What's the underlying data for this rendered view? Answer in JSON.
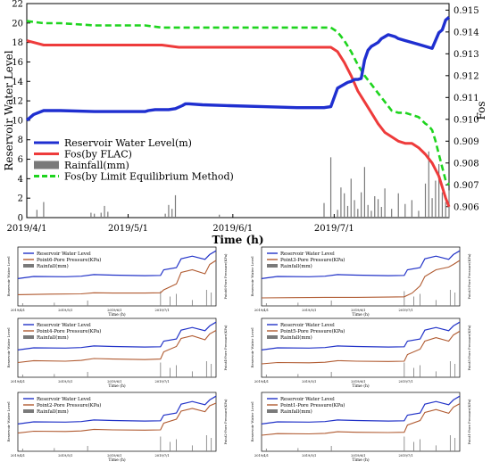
{
  "colors": {
    "water": "#1f2fd0",
    "fos_flac": "#ee3b3b",
    "fos_lem": "#1ed41e",
    "rainfall": "#7a7a7a",
    "pore": "#b05a30",
    "water_small": "#2233c8"
  },
  "chart_data": [
    {
      "type": "line",
      "xlabel": "Time (h)",
      "ylabel": "Reservoir Water Level",
      "y2label": "Fos",
      "xticks": [
        "2019/4/1",
        "2019/5/1",
        "2019/6/1",
        "2019/7/1"
      ],
      "yticks": [
        "0",
        "2",
        "4",
        "6",
        "8",
        "10",
        "12",
        "14",
        "16",
        "18",
        "20",
        "22"
      ],
      "y2ticks": [
        "0.906",
        "0.907",
        "0.908",
        "0.909",
        "0.910",
        "0.911",
        "0.912",
        "0.913",
        "0.914",
        "0.915"
      ],
      "xlim": [
        0,
        125
      ],
      "ylim": [
        0,
        22
      ],
      "y2lim": [
        0.9055,
        0.9153
      ],
      "legend_position": "center-left",
      "series": [
        {
          "name": "Reservoir Water Level(m)",
          "axis": "left",
          "x": [
            0,
            2,
            5,
            10,
            20,
            30,
            35,
            36,
            38,
            40,
            42,
            44,
            46,
            47,
            48,
            52,
            60,
            70,
            80,
            85,
            88,
            90,
            92,
            94,
            95,
            96,
            97,
            98,
            99,
            100,
            101,
            102,
            103,
            104,
            105,
            106,
            107,
            108,
            109,
            110,
            112,
            114,
            116,
            118,
            120,
            122,
            123,
            124,
            125
          ],
          "values": [
            10.0,
            10.6,
            11.0,
            11.0,
            10.9,
            10.9,
            10.9,
            11.0,
            11.1,
            11.1,
            11.1,
            11.2,
            11.5,
            11.7,
            11.7,
            11.6,
            11.5,
            11.4,
            11.3,
            11.3,
            11.3,
            11.4,
            13.3,
            13.7,
            13.9,
            14.0,
            14.2,
            14.2,
            14.3,
            16.2,
            17.2,
            17.6,
            17.8,
            18.0,
            18.4,
            18.6,
            18.8,
            18.7,
            18.6,
            18.4,
            18.2,
            18.0,
            17.8,
            17.6,
            17.4,
            19.0,
            19.3,
            20.3,
            20.6
          ]
        },
        {
          "name": "Fos(by FLAC)",
          "axis": "right",
          "x": [
            0,
            5,
            10,
            20,
            30,
            35,
            40,
            45,
            50,
            60,
            70,
            80,
            90,
            92,
            94,
            96,
            98,
            100,
            102,
            104,
            106,
            108,
            110,
            112,
            114,
            116,
            118,
            120,
            122,
            123,
            124,
            125
          ],
          "values": [
            0.9136,
            0.9134,
            0.9134,
            0.9134,
            0.9134,
            0.9134,
            0.9134,
            0.9133,
            0.9133,
            0.9133,
            0.9133,
            0.9133,
            0.9133,
            0.9131,
            0.9126,
            0.912,
            0.9113,
            0.9108,
            0.9103,
            0.9098,
            0.9094,
            0.9092,
            0.909,
            0.9089,
            0.9089,
            0.9087,
            0.9084,
            0.908,
            0.9074,
            0.9069,
            0.9064,
            0.906
          ]
        },
        {
          "name": "Fos(by Limit Equilibrium Method)",
          "axis": "right",
          "x": [
            0,
            5,
            10,
            20,
            30,
            35,
            40,
            45,
            50,
            60,
            70,
            80,
            90,
            92,
            94,
            96,
            98,
            100,
            102,
            104,
            106,
            108,
            110,
            112,
            114,
            116,
            118,
            119,
            120,
            121,
            122,
            123,
            124,
            125
          ],
          "values": [
            0.9145,
            0.9144,
            0.9144,
            0.9143,
            0.9143,
            0.9143,
            0.9142,
            0.9142,
            0.9142,
            0.9142,
            0.9142,
            0.9142,
            0.9142,
            0.914,
            0.9136,
            0.9131,
            0.9125,
            0.912,
            0.9116,
            0.9112,
            0.9108,
            0.9104,
            0.9103,
            0.9103,
            0.9102,
            0.9101,
            0.9098,
            0.9097,
            0.9095,
            0.909,
            0.9084,
            0.9078,
            0.9072,
            0.907
          ]
        },
        {
          "name": "Rainfall(mm)",
          "axis": "left",
          "type": "bar",
          "x": [
            3,
            5,
            19,
            20,
            22,
            23,
            24,
            41,
            42,
            43,
            44,
            57,
            88,
            90,
            92,
            93,
            94,
            95,
            96,
            97,
            98,
            99,
            100,
            101,
            102,
            103,
            104,
            105,
            106,
            108,
            110,
            112,
            114,
            116,
            118,
            119,
            120,
            121,
            122,
            123,
            124,
            125
          ],
          "values": [
            0.8,
            1.6,
            0.5,
            0.4,
            0.5,
            1.2,
            0.6,
            0.4,
            1.3,
            0.9,
            2.3,
            0.3,
            1.5,
            6.2,
            0.8,
            3.1,
            2.5,
            1.2,
            4.0,
            1.8,
            0.9,
            2.6,
            5.2,
            1.3,
            0.7,
            2.2,
            1.9,
            1.1,
            3.0,
            0.9,
            2.5,
            1.4,
            1.8,
            0.7,
            3.5,
            6.8,
            2.0,
            3.8,
            5.5,
            2.6,
            1.6,
            2.8
          ]
        }
      ]
    },
    {
      "type": "line",
      "xticks": [
        "2019/4/1",
        "2019/5/1",
        "2019/6/1",
        "2019/7/1"
      ],
      "xlabel": "Time (h)",
      "ylabel": "Reservoir Water Level",
      "y2label": "Point6-Pore Pressure(KPa)",
      "series": [
        {
          "name": "Reservoir Water Level",
          "x": [
            0,
            10,
            30,
            40,
            48,
            60,
            80,
            90,
            92,
            100,
            103,
            110,
            118,
            121,
            125
          ],
          "values": [
            10.2,
            11.0,
            10.9,
            11.1,
            11.7,
            11.5,
            11.3,
            11.4,
            13.5,
            14.3,
            17.6,
            18.6,
            17.4,
            19.2,
            20.6
          ]
        },
        {
          "name": "Point6-Pore Pressure(KPa)",
          "x": [
            0,
            20,
            40,
            48,
            60,
            80,
            90,
            92,
            100,
            103,
            110,
            118,
            121,
            125
          ],
          "values": [
            4.2,
            4.4,
            4.5,
            4.9,
            4.8,
            4.8,
            4.9,
            6.0,
            8.2,
            12.5,
            13.5,
            12.0,
            15.5,
            17.0
          ]
        },
        {
          "name": "Rainfall(mm)",
          "type": "bar",
          "x": [
            3,
            23,
            44,
            90,
            96,
            100,
            110,
            119,
            122
          ],
          "values": [
            1,
            1.2,
            2,
            5.5,
            3.5,
            4.5,
            2.2,
            6,
            5
          ]
        }
      ]
    },
    {
      "type": "line",
      "xticks": [
        "2019/4/1",
        "2019/5/1",
        "2019/6/1",
        "2019/7/1"
      ],
      "xlabel": "Time (h)",
      "ylabel": "Reservoir Water Level",
      "y2label": "Point3-Pore Pressure(KPa)",
      "series": [
        {
          "name": "Reservoir Water Level",
          "x": [
            0,
            10,
            30,
            40,
            48,
            60,
            80,
            90,
            92,
            100,
            103,
            110,
            118,
            121,
            125
          ],
          "values": [
            10.2,
            11.0,
            10.9,
            11.1,
            11.7,
            11.5,
            11.3,
            11.4,
            13.5,
            14.3,
            17.6,
            18.6,
            17.4,
            19.2,
            20.6
          ]
        },
        {
          "name": "Point3-Pore Pressure(KPa)",
          "x": [
            0,
            20,
            40,
            60,
            80,
            90,
            95,
            100,
            103,
            110,
            118,
            121,
            125
          ],
          "values": [
            3.0,
            3.1,
            3.2,
            3.2,
            3.3,
            3.4,
            4.8,
            7.5,
            11.0,
            13.5,
            14.5,
            15.5,
            17.0
          ]
        },
        {
          "name": "Rainfall(mm)",
          "type": "bar",
          "x": [
            3,
            23,
            44,
            90,
            96,
            100,
            110,
            119,
            122
          ],
          "values": [
            1,
            1.2,
            2,
            5.5,
            3.5,
            4.5,
            2.2,
            6,
            5
          ]
        }
      ]
    },
    {
      "type": "line",
      "xticks": [
        "2019/4/1",
        "2019/5/1",
        "2019/6/1",
        "2019/7/1"
      ],
      "xlabel": "Time (h)",
      "ylabel": "Reservoir Water Level",
      "y2label": "Point4-Pore Pressure(KPa)",
      "series": [
        {
          "name": "Reservoir Water Level",
          "x": [
            0,
            10,
            30,
            40,
            48,
            60,
            80,
            90,
            92,
            100,
            103,
            110,
            118,
            121,
            125
          ],
          "values": [
            10.2,
            11.0,
            10.9,
            11.1,
            11.7,
            11.5,
            11.3,
            11.4,
            13.5,
            14.3,
            17.6,
            18.6,
            17.4,
            19.2,
            20.6
          ]
        },
        {
          "name": "Point4-Pore Pressure(KPa)",
          "x": [
            0,
            10,
            30,
            40,
            48,
            60,
            80,
            90,
            92,
            100,
            103,
            110,
            118,
            121,
            125
          ],
          "values": [
            5.5,
            6.2,
            6.0,
            6.3,
            7.0,
            6.8,
            6.6,
            6.8,
            9.5,
            11.5,
            14.5,
            15.5,
            14.0,
            16.2,
            17.5
          ]
        },
        {
          "name": "Rainfall(mm)",
          "type": "bar",
          "x": [
            3,
            23,
            44,
            90,
            96,
            100,
            110,
            119,
            122
          ],
          "values": [
            1,
            1.2,
            2,
            5.5,
            3.5,
            4.5,
            2.2,
            6,
            5
          ]
        }
      ]
    },
    {
      "type": "line",
      "xticks": [
        "2019/4/1",
        "2019/5/1",
        "2019/6/1",
        "2019/7/1"
      ],
      "xlabel": "Time (h)",
      "ylabel": "Reservoir Water Level",
      "y2label": "Point5-Pore Pressure(KPa)",
      "series": [
        {
          "name": "Reservoir Water Level",
          "x": [
            0,
            10,
            30,
            40,
            48,
            60,
            80,
            90,
            92,
            100,
            103,
            110,
            118,
            121,
            125
          ],
          "values": [
            10.2,
            11.0,
            10.9,
            11.1,
            11.7,
            11.5,
            11.3,
            11.4,
            13.5,
            14.3,
            17.6,
            18.6,
            17.4,
            19.2,
            20.6
          ]
        },
        {
          "name": "Point5-Pore Pressure(KPa)",
          "x": [
            0,
            10,
            30,
            40,
            48,
            60,
            80,
            90,
            92,
            100,
            103,
            110,
            118,
            121,
            125
          ],
          "values": [
            5.0,
            5.5,
            5.4,
            5.6,
            6.2,
            6.0,
            5.9,
            6.0,
            8.5,
            10.5,
            13.5,
            14.8,
            13.5,
            15.8,
            17.2
          ]
        },
        {
          "name": "Rainfall(mm)",
          "type": "bar",
          "x": [
            3,
            23,
            44,
            90,
            96,
            100,
            110,
            119,
            122
          ],
          "values": [
            1,
            1.2,
            2,
            5.5,
            3.5,
            4.5,
            2.2,
            6,
            5
          ]
        }
      ]
    },
    {
      "type": "line",
      "xticks": [
        "2019/4/1",
        "2019/5/1",
        "2019/6/1",
        "2019/7/1"
      ],
      "xlabel": "Time (h)",
      "ylabel": "Reservoir Water Level",
      "y2label": "Point2-Pore Pressure(KPa)",
      "series": [
        {
          "name": "Reservoir Water Level",
          "x": [
            0,
            10,
            30,
            40,
            48,
            60,
            80,
            90,
            92,
            100,
            103,
            110,
            118,
            121,
            125
          ],
          "values": [
            10.2,
            11.0,
            10.9,
            11.1,
            11.7,
            11.5,
            11.3,
            11.4,
            13.5,
            14.3,
            17.6,
            18.6,
            17.4,
            19.2,
            20.6
          ]
        },
        {
          "name": "Point2-Pore Pressure(KPa)",
          "x": [
            0,
            10,
            30,
            40,
            48,
            60,
            80,
            90,
            92,
            100,
            103,
            110,
            118,
            121,
            125
          ],
          "values": [
            6.8,
            7.5,
            7.4,
            7.6,
            8.2,
            8.0,
            7.9,
            8.0,
            10.5,
            12.0,
            15.0,
            16.0,
            14.8,
            17.0,
            18.0
          ]
        },
        {
          "name": "Rainfall(mm)",
          "type": "bar",
          "x": [
            3,
            23,
            44,
            90,
            96,
            100,
            110,
            119,
            122
          ],
          "values": [
            1,
            1.2,
            2,
            5.5,
            3.5,
            4.5,
            2.2,
            6,
            5
          ]
        }
      ]
    },
    {
      "type": "line",
      "xticks": [
        "2019/4/1",
        "2019/5/1",
        "2019/6/1",
        "2019/7/1"
      ],
      "xlabel": "Time (h)",
      "ylabel": "Reservoir Water Level",
      "y2label": "Point1-Pore Pressure(KPa)",
      "series": [
        {
          "name": "Reservoir Water Level",
          "x": [
            0,
            10,
            30,
            40,
            48,
            60,
            80,
            90,
            92,
            100,
            103,
            110,
            118,
            121,
            125
          ],
          "values": [
            10.2,
            11.0,
            10.9,
            11.1,
            11.7,
            11.5,
            11.3,
            11.4,
            13.5,
            14.3,
            17.6,
            18.6,
            17.4,
            19.2,
            20.6
          ]
        },
        {
          "name": "Point1-Pore Pressure(KPa)",
          "x": [
            0,
            10,
            30,
            40,
            48,
            60,
            80,
            90,
            92,
            100,
            103,
            110,
            118,
            121,
            125
          ],
          "values": [
            6.0,
            6.6,
            6.5,
            6.7,
            7.3,
            7.1,
            7.0,
            7.1,
            9.8,
            11.5,
            14.5,
            15.6,
            14.2,
            16.5,
            17.8
          ]
        },
        {
          "name": "Rainfall(mm)",
          "type": "bar",
          "x": [
            3,
            23,
            44,
            90,
            96,
            100,
            110,
            119,
            122
          ],
          "values": [
            1,
            1.2,
            2,
            5.5,
            3.5,
            4.5,
            2.2,
            6,
            5
          ]
        }
      ]
    }
  ]
}
